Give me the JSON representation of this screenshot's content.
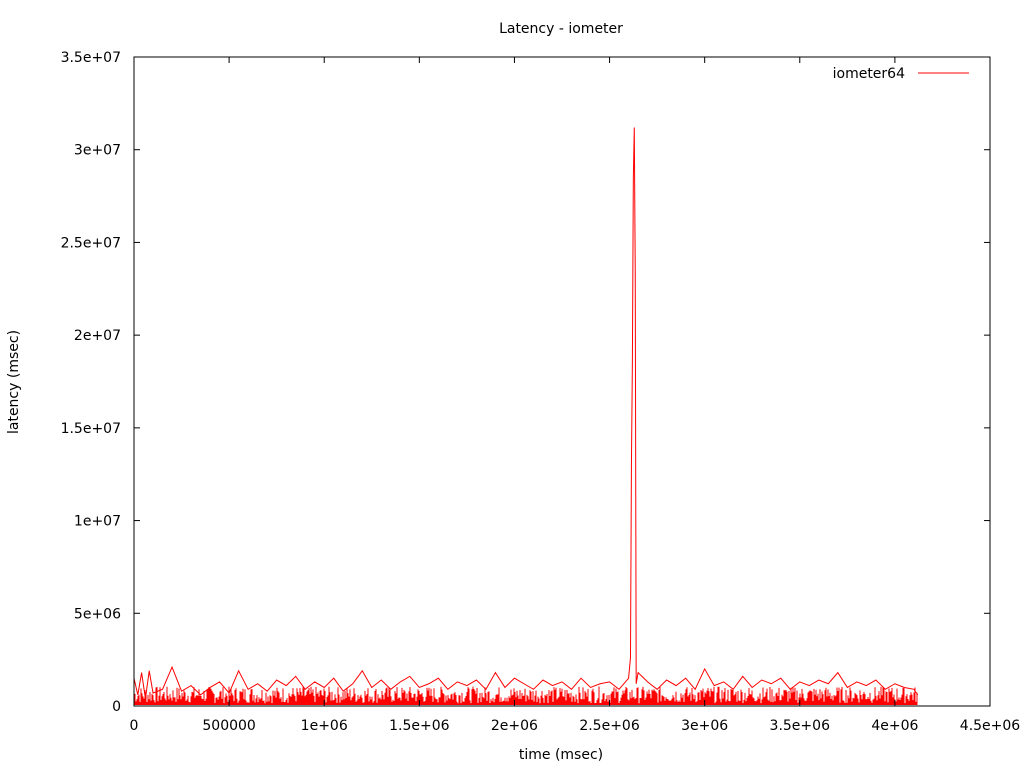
{
  "chart_data": {
    "type": "line",
    "title": "Latency - iometer",
    "xlabel": "time (msec)",
    "ylabel": "latency (msec)",
    "xlim": [
      0,
      4500000
    ],
    "ylim": [
      0,
      35000000
    ],
    "x_ticks": [
      {
        "value": 0,
        "label": "0"
      },
      {
        "value": 500000,
        "label": "500000"
      },
      {
        "value": 1000000,
        "label": "1e+06"
      },
      {
        "value": 1500000,
        "label": "1.5e+06"
      },
      {
        "value": 2000000,
        "label": "2e+06"
      },
      {
        "value": 2500000,
        "label": "2.5e+06"
      },
      {
        "value": 3000000,
        "label": "3e+06"
      },
      {
        "value": 3500000,
        "label": "3.5e+06"
      },
      {
        "value": 4000000,
        "label": "4e+06"
      },
      {
        "value": 4500000,
        "label": "4.5e+06"
      }
    ],
    "y_ticks": [
      {
        "value": 0,
        "label": "0"
      },
      {
        "value": 5000000,
        "label": "5e+06"
      },
      {
        "value": 10000000,
        "label": "1e+07"
      },
      {
        "value": 15000000,
        "label": "1.5e+07"
      },
      {
        "value": 20000000,
        "label": "2e+07"
      },
      {
        "value": 25000000,
        "label": "2.5e+07"
      },
      {
        "value": 30000000,
        "label": "3e+07"
      },
      {
        "value": 35000000,
        "label": "3.5e+07"
      }
    ],
    "grid": false,
    "legend_position": "top-right",
    "series": [
      {
        "name": "iometer64",
        "color": "#ff0000",
        "x": [
          0,
          20000,
          40000,
          60000,
          80000,
          100000,
          150000,
          200000,
          250000,
          300000,
          350000,
          400000,
          450000,
          500000,
          550000,
          600000,
          650000,
          700000,
          750000,
          800000,
          850000,
          900000,
          950000,
          1000000,
          1050000,
          1100000,
          1150000,
          1200000,
          1250000,
          1300000,
          1350000,
          1400000,
          1450000,
          1500000,
          1550000,
          1600000,
          1650000,
          1700000,
          1750000,
          1800000,
          1850000,
          1900000,
          1950000,
          2000000,
          2050000,
          2100000,
          2150000,
          2200000,
          2250000,
          2300000,
          2350000,
          2400000,
          2450000,
          2500000,
          2550000,
          2600000,
          2610000,
          2615000,
          2620000,
          2625000,
          2630000,
          2635000,
          2640000,
          2645000,
          2650000,
          2700000,
          2750000,
          2800000,
          2850000,
          2900000,
          2950000,
          3000000,
          3050000,
          3100000,
          3150000,
          3200000,
          3250000,
          3300000,
          3350000,
          3400000,
          3450000,
          3500000,
          3550000,
          3600000,
          3650000,
          3700000,
          3750000,
          3800000,
          3850000,
          3900000,
          3950000,
          4000000,
          4050000,
          4100000,
          4120000
        ],
        "y": [
          1500000,
          600000,
          1800000,
          400000,
          1900000,
          700000,
          900000,
          2100000,
          800000,
          1100000,
          600000,
          1000000,
          1300000,
          700000,
          1900000,
          900000,
          1200000,
          800000,
          1400000,
          1100000,
          1600000,
          900000,
          1300000,
          1000000,
          1500000,
          800000,
          1200000,
          1900000,
          1000000,
          1400000,
          900000,
          1300000,
          1600000,
          1000000,
          1200000,
          1500000,
          900000,
          1300000,
          1100000,
          1400000,
          900000,
          1800000,
          1000000,
          1500000,
          1200000,
          900000,
          1400000,
          1100000,
          1300000,
          900000,
          1500000,
          1000000,
          1200000,
          1300000,
          900000,
          1500000,
          2600000,
          13000000,
          18500000,
          28500000,
          31200000,
          23500000,
          1200000,
          1500000,
          1800000,
          1300000,
          900000,
          1400000,
          1100000,
          1500000,
          900000,
          2000000,
          1100000,
          1300000,
          900000,
          1600000,
          1000000,
          1400000,
          1200000,
          1500000,
          900000,
          1300000,
          1100000,
          1400000,
          1200000,
          1800000,
          1000000,
          1300000,
          1100000,
          1400000,
          900000,
          1200000,
          1000000,
          900000,
          600000
        ]
      }
    ]
  }
}
